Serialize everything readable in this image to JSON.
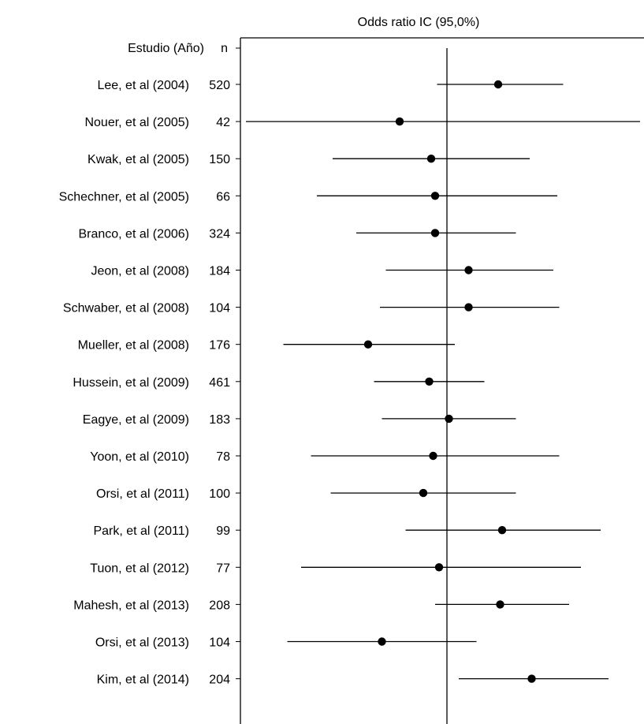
{
  "chart_data": {
    "type": "forest",
    "title": "Odds ratio IC  (95,0%)",
    "header": {
      "study_label": "Estudio  (Año)",
      "n_label": "n"
    },
    "studies": [
      {
        "study": "Lee, et al (2004)",
        "n": "520",
        "estimate": 0.26,
        "ci": [
          -0.05,
          0.59
        ]
      },
      {
        "study": "Nouer, et al (2005)",
        "n": "42",
        "estimate": -0.24,
        "ci": [
          -1.02,
          0.98
        ]
      },
      {
        "study": "Kwak, et al (2005)",
        "n": "150",
        "estimate": -0.08,
        "ci": [
          -0.58,
          0.42
        ]
      },
      {
        "study": "Schechner, et al (2005)",
        "n": "66",
        "estimate": -0.06,
        "ci": [
          -0.66,
          0.56
        ]
      },
      {
        "study": "Branco, et al (2006)",
        "n": "324",
        "estimate": -0.06,
        "ci": [
          -0.46,
          0.35
        ]
      },
      {
        "study": "Jeon, et al (2008)",
        "n": "184",
        "estimate": 0.11,
        "ci": [
          -0.31,
          0.54
        ]
      },
      {
        "study": "Schwaber, et al (2008)",
        "n": "104",
        "estimate": 0.11,
        "ci": [
          -0.34,
          0.57
        ]
      },
      {
        "study": "Mueller, et al (2008)",
        "n": "176",
        "estimate": -0.4,
        "ci": [
          -0.83,
          0.04
        ]
      },
      {
        "study": "Hussein, et al (2009)",
        "n": "461",
        "estimate": -0.09,
        "ci": [
          -0.37,
          0.19
        ]
      },
      {
        "study": "Eagye, et al (2009)",
        "n": "183",
        "estimate": 0.01,
        "ci": [
          -0.33,
          0.35
        ]
      },
      {
        "study": "Yoon, et al (2010)",
        "n": "78",
        "estimate": -0.07,
        "ci": [
          -0.69,
          0.57
        ]
      },
      {
        "study": "Orsi, et al (2011)",
        "n": "100",
        "estimate": -0.12,
        "ci": [
          -0.59,
          0.35
        ]
      },
      {
        "study": "Park, et al (2011)",
        "n": "99",
        "estimate": 0.28,
        "ci": [
          -0.21,
          0.78
        ]
      },
      {
        "study": "Tuon, et al (2012)",
        "n": "77",
        "estimate": -0.04,
        "ci": [
          -0.74,
          0.68
        ]
      },
      {
        "study": "Mahesh, et al (2013)",
        "n": "208",
        "estimate": 0.27,
        "ci": [
          -0.06,
          0.62
        ]
      },
      {
        "study": "Orsi, et al (2013)",
        "n": "104",
        "estimate": -0.33,
        "ci": [
          -0.81,
          0.15
        ]
      },
      {
        "study": "Kim, et al (2014)",
        "n": "204",
        "estimate": 0.43,
        "ci": [
          0.06,
          0.82
        ]
      }
    ],
    "reference_line": 0,
    "xlim": [
      -1.02,
      1.0
    ],
    "grid": false,
    "legend": "none"
  }
}
